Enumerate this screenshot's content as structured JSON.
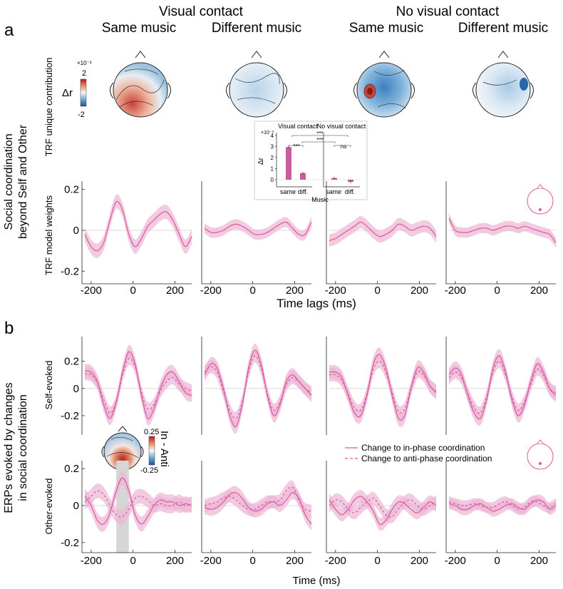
{
  "header": {
    "group_visual": "Visual contact",
    "group_novisual": "No visual contact",
    "conditions": [
      "Same music",
      "Different music",
      "Same music",
      "Different music"
    ]
  },
  "panel_a": {
    "letter": "a",
    "row_label_1": "Social coordination",
    "row_label_2": "beyond Self and Other",
    "topo_ylabel": "TRF unique contribution",
    "colorbar": {
      "label": "Δr",
      "exponent": "×10⁻³",
      "max": "2",
      "min": "-2"
    },
    "trf_ylabel": "TRF model weights",
    "xlabel": "Time lags (ms)"
  },
  "panel_b": {
    "letter": "b",
    "row_label_1": "ERPs evoked by changes",
    "row_label_2": "in social coordination",
    "self_ylabel": "Self-evoked",
    "other_ylabel": "Other-evoked",
    "xlabel": "Time (ms)",
    "colorbar": {
      "label": "In - Anti",
      "max": "0.25",
      "min": "-0.25"
    },
    "legend": {
      "solid": "Change to in-phase coordination",
      "dashed": "Change to anti-phase coordination"
    }
  },
  "colors": {
    "line": "#d9589f",
    "band": "#ecb5d4",
    "bar": "#c95ba1",
    "grey_window": "#d6d6d6",
    "red": "#c62d24",
    "blue": "#1f5fa6"
  },
  "chart_data": [
    {
      "id": "inset_bar",
      "type": "bar",
      "title_left": "Visual contact",
      "title_right": "No visual contact",
      "categories": [
        "same",
        "diff."
      ],
      "series": [
        {
          "name": "Visual contact",
          "values": [
            2.95,
            0.6
          ]
        },
        {
          "name": "No visual contact",
          "values": [
            0.15,
            -0.2
          ]
        }
      ],
      "ylabel": "Δr",
      "y_exponent": "×10⁻³",
      "xlabel": "Music",
      "ylim": [
        -0.5,
        4
      ],
      "yticks": [
        "0",
        "1",
        "2",
        "3",
        "4"
      ],
      "significance": [
        "***",
        "***",
        "***",
        "ns"
      ]
    },
    {
      "id": "trf_weights",
      "type": "line",
      "ylabel": "TRF model weights",
      "xlabel": "Time lags (ms)",
      "xlim": [
        -230,
        280
      ],
      "ylim": [
        -0.22,
        0.22
      ],
      "xticks": [
        "-200",
        "0",
        "200"
      ],
      "yticks": [
        "0.2",
        "0",
        "-0.2"
      ],
      "x": [
        -230,
        -200,
        -170,
        -140,
        -110,
        -80,
        -50,
        -20,
        10,
        40,
        70,
        100,
        130,
        160,
        190,
        220,
        250,
        280
      ],
      "panels": [
        {
          "condition": "Visual contact - Same music",
          "mean": [
            -0.02,
            -0.08,
            -0.1,
            -0.06,
            0.05,
            0.14,
            0.1,
            -0.02,
            -0.08,
            -0.04,
            0.02,
            0.05,
            0.08,
            0.09,
            0.05,
            -0.02,
            -0.08,
            -0.03
          ],
          "err": 0.035
        },
        {
          "condition": "Visual contact - Different music",
          "mean": [
            0.01,
            -0.01,
            -0.01,
            0.0,
            0.02,
            0.03,
            0.02,
            0.0,
            -0.02,
            -0.02,
            -0.01,
            0.01,
            0.03,
            0.04,
            0.01,
            -0.02,
            -0.02,
            0.04
          ],
          "err": 0.025
        },
        {
          "condition": "No visual contact - Same music",
          "mean": [
            -0.05,
            -0.04,
            -0.02,
            0.0,
            0.02,
            0.04,
            0.02,
            -0.01,
            -0.03,
            -0.02,
            0.0,
            0.03,
            0.02,
            0.0,
            0.01,
            0.02,
            0.01,
            -0.03
          ],
          "err": 0.03
        },
        {
          "condition": "No visual contact - Different music",
          "mean": [
            0.06,
            0.0,
            -0.01,
            -0.01,
            0.0,
            0.01,
            0.01,
            0.0,
            0.01,
            0.02,
            0.02,
            0.01,
            0.02,
            0.01,
            0.0,
            -0.01,
            -0.02,
            -0.06
          ],
          "err": 0.025
        }
      ]
    },
    {
      "id": "self_evoked",
      "type": "line",
      "ylabel": "Self-evoked",
      "xlim": [
        -230,
        280
      ],
      "ylim": [
        -0.3,
        0.35
      ],
      "xticks": [
        "-200",
        "0",
        "200"
      ],
      "yticks": [
        "0.2",
        "0",
        "-0.2"
      ],
      "x": [
        -230,
        -200,
        -170,
        -140,
        -110,
        -80,
        -50,
        -20,
        10,
        40,
        70,
        100,
        130,
        160,
        190,
        220,
        250,
        280
      ],
      "panels": [
        {
          "condition": "Visual contact - Same music",
          "in_phase": [
            0.13,
            0.12,
            0.05,
            -0.12,
            -0.22,
            -0.1,
            0.12,
            0.27,
            0.18,
            -0.05,
            -0.22,
            -0.15,
            0.0,
            0.1,
            0.12,
            0.05,
            -0.03,
            -0.05
          ],
          "anti_phase": [
            0.11,
            0.1,
            0.04,
            -0.08,
            -0.18,
            -0.1,
            0.1,
            0.22,
            0.16,
            -0.03,
            -0.15,
            -0.12,
            -0.02,
            0.05,
            0.08,
            0.03,
            0.0,
            -0.02
          ],
          "err": 0.05
        },
        {
          "condition": "Visual contact - Different music",
          "in_phase": [
            0.1,
            0.18,
            0.15,
            0.0,
            -0.2,
            -0.28,
            -0.12,
            0.15,
            0.28,
            0.18,
            -0.05,
            -0.2,
            -0.12,
            0.05,
            0.1,
            0.05,
            0.0,
            -0.05
          ],
          "anti_phase": [
            0.12,
            0.16,
            0.12,
            -0.02,
            -0.16,
            -0.22,
            -0.1,
            0.12,
            0.24,
            0.15,
            -0.04,
            -0.16,
            -0.1,
            0.03,
            0.08,
            0.05,
            0.0,
            -0.03
          ],
          "err": 0.05
        },
        {
          "condition": "No visual contact - Same music",
          "in_phase": [
            0.12,
            0.12,
            0.08,
            -0.05,
            -0.18,
            -0.2,
            -0.05,
            0.18,
            0.25,
            0.15,
            -0.05,
            -0.22,
            -0.2,
            0.0,
            0.15,
            0.12,
            0.02,
            -0.03
          ],
          "anti_phase": [
            0.1,
            0.1,
            0.06,
            -0.04,
            -0.14,
            -0.16,
            -0.04,
            0.14,
            0.2,
            0.12,
            -0.03,
            -0.17,
            -0.15,
            0.0,
            0.12,
            0.1,
            0.02,
            -0.02
          ],
          "err": 0.05
        },
        {
          "condition": "No visual contact - Different music",
          "in_phase": [
            0.1,
            0.15,
            0.1,
            -0.05,
            -0.18,
            -0.22,
            -0.08,
            0.15,
            0.24,
            0.12,
            -0.08,
            -0.2,
            -0.12,
            0.05,
            0.18,
            0.12,
            0.0,
            -0.05
          ],
          "anti_phase": [
            0.08,
            0.12,
            0.08,
            -0.04,
            -0.14,
            -0.18,
            -0.06,
            0.12,
            0.2,
            0.1,
            -0.06,
            -0.16,
            -0.1,
            0.03,
            0.14,
            0.1,
            0.0,
            -0.03
          ],
          "err": 0.05
        }
      ]
    },
    {
      "id": "other_evoked",
      "type": "line",
      "ylabel": "Other-evoked",
      "xlabel": "Time (ms)",
      "xlim": [
        -230,
        280
      ],
      "ylim": [
        -0.22,
        0.22
      ],
      "xticks": [
        "-200",
        "0",
        "200"
      ],
      "yticks": [
        "0.2",
        "0",
        "-0.2"
      ],
      "highlight_window_ms": [
        -80,
        -20
      ],
      "x": [
        -230,
        -200,
        -170,
        -140,
        -110,
        -80,
        -50,
        -20,
        10,
        40,
        70,
        100,
        130,
        160,
        190,
        220,
        250,
        280
      ],
      "panels": [
        {
          "condition": "Visual contact - Same music",
          "in_phase": [
            0.05,
            0.0,
            -0.08,
            -0.1,
            -0.04,
            0.08,
            0.15,
            0.08,
            -0.05,
            -0.1,
            -0.06,
            0.0,
            0.03,
            0.02,
            0.02,
            0.0,
            0.01,
            0.0
          ],
          "anti_phase": [
            0.02,
            0.05,
            0.08,
            0.06,
            0.0,
            -0.05,
            -0.06,
            -0.02,
            0.04,
            0.05,
            0.03,
            0.0,
            0.01,
            0.0,
            0.0,
            0.02,
            0.0,
            0.01
          ],
          "err": 0.04
        },
        {
          "condition": "Visual contact - Different music",
          "in_phase": [
            -0.01,
            -0.02,
            -0.01,
            0.02,
            0.06,
            0.07,
            0.04,
            -0.01,
            -0.03,
            -0.02,
            0.01,
            0.02,
            0.0,
            0.03,
            0.07,
            0.04,
            -0.05,
            -0.1
          ],
          "anti_phase": [
            0.0,
            0.01,
            0.02,
            0.04,
            0.05,
            0.03,
            0.0,
            -0.02,
            -0.02,
            0.0,
            0.02,
            0.02,
            0.03,
            0.08,
            0.1,
            0.03,
            -0.02,
            -0.03
          ],
          "err": 0.035
        },
        {
          "condition": "No visual contact - Same music",
          "in_phase": [
            0.03,
            -0.02,
            -0.05,
            -0.02,
            0.03,
            0.05,
            0.02,
            -0.03,
            -0.1,
            -0.08,
            -0.02,
            0.02,
            0.01,
            -0.02,
            -0.04,
            -0.01,
            0.02,
            0.0
          ],
          "anti_phase": [
            0.0,
            0.03,
            0.02,
            -0.02,
            -0.04,
            -0.01,
            0.02,
            0.04,
            0.0,
            -0.05,
            -0.06,
            -0.02,
            0.02,
            0.03,
            0.0,
            -0.02,
            0.0,
            0.02
          ],
          "err": 0.035
        },
        {
          "condition": "No visual contact - Different music",
          "in_phase": [
            0.01,
            0.0,
            -0.02,
            -0.02,
            0.0,
            0.01,
            -0.01,
            -0.03,
            -0.02,
            0.0,
            0.01,
            -0.01,
            -0.02,
            0.01,
            0.03,
            0.02,
            -0.02,
            0.0
          ],
          "anti_phase": [
            0.02,
            0.01,
            0.0,
            0.0,
            0.01,
            0.0,
            -0.01,
            -0.01,
            0.01,
            0.02,
            0.0,
            -0.02,
            -0.01,
            0.02,
            0.02,
            0.0,
            -0.01,
            0.01
          ],
          "err": 0.03
        }
      ]
    }
  ]
}
